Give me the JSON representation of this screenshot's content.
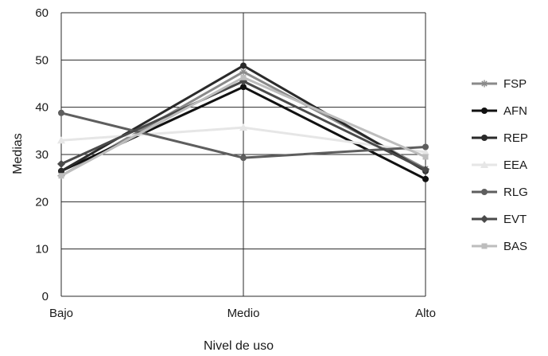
{
  "chart_data": {
    "type": "line",
    "title": "",
    "xlabel": "Nivel de uso",
    "ylabel": "Medias",
    "categories": [
      "Bajo",
      "Medio",
      "Alto"
    ],
    "ylim": [
      0,
      60
    ],
    "yticks": [
      0,
      10,
      20,
      30,
      40,
      50,
      60
    ],
    "grid": "horizontal",
    "legend_position": "right",
    "series": [
      {
        "name": "FSP",
        "values": [
          25.5,
          47.5,
          27.0
        ],
        "color": "#8a8a8a",
        "marker": "asterisk"
      },
      {
        "name": "AFN",
        "values": [
          26.5,
          44.3,
          24.8
        ],
        "color": "#111111",
        "marker": "circle"
      },
      {
        "name": "REP",
        "values": [
          26.5,
          48.8,
          26.5
        ],
        "color": "#2a2a2a",
        "marker": "circle"
      },
      {
        "name": "EEA",
        "values": [
          33.0,
          35.7,
          30.5
        ],
        "color": "#e6e6e6",
        "marker": "triangle"
      },
      {
        "name": "RLG",
        "values": [
          38.8,
          29.3,
          31.6
        ],
        "color": "#5e5e5e",
        "marker": "circle"
      },
      {
        "name": "EVT",
        "values": [
          28.0,
          45.5,
          26.8
        ],
        "color": "#4a4a4a",
        "marker": "diamond"
      },
      {
        "name": "BAS",
        "values": [
          25.5,
          46.3,
          29.5
        ],
        "color": "#bdbdbd",
        "marker": "square"
      }
    ]
  }
}
